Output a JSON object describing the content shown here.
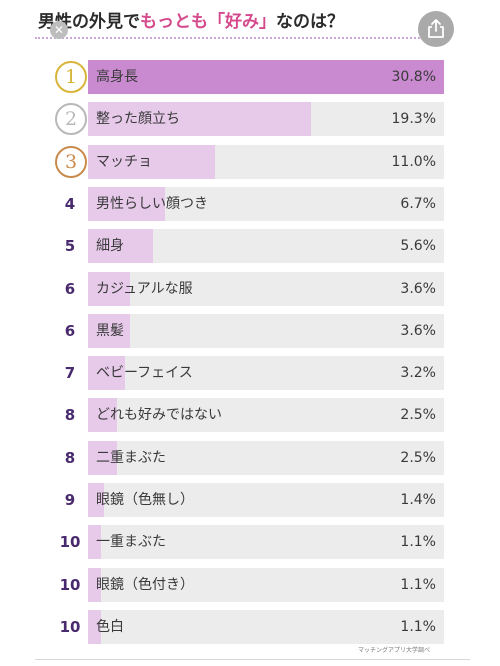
{
  "title": {
    "part1": "男性の外見で",
    "part2": "もっとも「好み」",
    "part3": "なのは？"
  },
  "source": "マッチングアプリ大学調べ",
  "colors": {
    "fill_top": "#c98ad0",
    "fill_default": "#e7c9ea",
    "track": "#ececec",
    "gold": "#d8b53a",
    "silver": "#b8b8b8",
    "bronze": "#c98a4c",
    "rank_text": "#4a2a6e"
  },
  "chart_data": {
    "type": "bar",
    "title": "男性の外見でもっとも「好み」なのは？",
    "unit": "%",
    "xlim": [
      0,
      30.8
    ],
    "items": [
      {
        "rank": "1",
        "label": "高身長",
        "value": 30.8,
        "display": "30.8%",
        "medal": "gold"
      },
      {
        "rank": "2",
        "label": "整った顔立ち",
        "value": 19.3,
        "display": "19.3%",
        "medal": "silver"
      },
      {
        "rank": "3",
        "label": "マッチョ",
        "value": 11.0,
        "display": "11.0%",
        "medal": "bronze"
      },
      {
        "rank": "4",
        "label": "男性らしい顔つき",
        "value": 6.7,
        "display": "6.7%"
      },
      {
        "rank": "5",
        "label": "細身",
        "value": 5.6,
        "display": "5.6%"
      },
      {
        "rank": "6",
        "label": "カジュアルな服",
        "value": 3.6,
        "display": "3.6%"
      },
      {
        "rank": "6",
        "label": "黒髪",
        "value": 3.6,
        "display": "3.6%"
      },
      {
        "rank": "7",
        "label": "ベビーフェイス",
        "value": 3.2,
        "display": "3.2%"
      },
      {
        "rank": "8",
        "label": "どれも好みではない",
        "value": 2.5,
        "display": "2.5%"
      },
      {
        "rank": "8",
        "label": "二重まぶた",
        "value": 2.5,
        "display": "2.5%"
      },
      {
        "rank": "9",
        "label": "眼鏡（色無し）",
        "value": 1.4,
        "display": "1.4%"
      },
      {
        "rank": "10",
        "label": "一重まぶた",
        "value": 1.1,
        "display": "1.1%"
      },
      {
        "rank": "10",
        "label": "眼鏡（色付き）",
        "value": 1.1,
        "display": "1.1%"
      },
      {
        "rank": "10",
        "label": "色白",
        "value": 1.1,
        "display": "1.1%"
      }
    ]
  }
}
